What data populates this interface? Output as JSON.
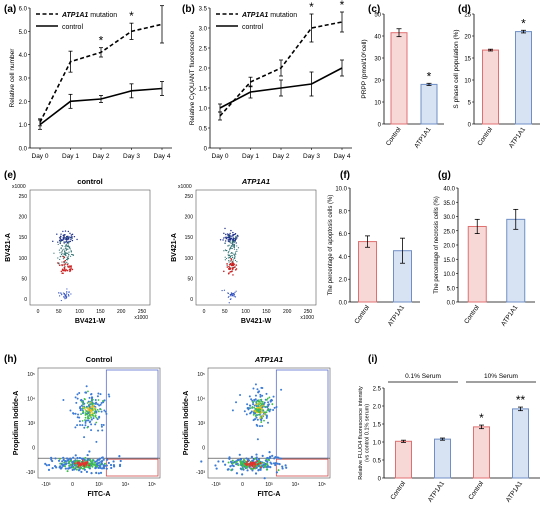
{
  "panels": {
    "a": "(a)",
    "b": "(b)",
    "c": "(c)",
    "d": "(d)",
    "e": "(e)",
    "f": "(f)",
    "g": "(g)",
    "h": "(h)",
    "i": "(i)"
  },
  "colors": {
    "control_fill": "#f8d7d7",
    "control_edge": "#e07070",
    "mut_fill": "#d7e2f2",
    "mut_edge": "#6f8fc6",
    "gate_blue": "#5a6fd0",
    "gate_red": "#d04a4a"
  },
  "chart_data": [
    {
      "id": "a",
      "type": "line",
      "ylabel": "Relative cell number",
      "categories": [
        "Day 0",
        "Day 1",
        "Day 2",
        "Day 3",
        "Day 4"
      ],
      "ylim": [
        0,
        6.0
      ],
      "yticks": [
        "0.0",
        "1.0",
        "2.0",
        "3.0",
        "4.0",
        "5.0",
        "6.0"
      ],
      "series": [
        {
          "name": "ATP1A1 mutation",
          "style": "dashed",
          "values": [
            1.1,
            3.7,
            4.1,
            5.0,
            5.3
          ],
          "errors": [
            0.15,
            0.45,
            0.2,
            0.35,
            0.8
          ]
        },
        {
          "name": "control",
          "style": "solid",
          "values": [
            1.0,
            2.0,
            2.1,
            2.45,
            2.55
          ],
          "errors": [
            0.2,
            0.3,
            0.15,
            0.3,
            0.3
          ]
        }
      ],
      "annotations": [
        "*",
        "*",
        "*"
      ],
      "annotation_positions": [
        2,
        3,
        4
      ]
    },
    {
      "id": "b",
      "type": "line",
      "ylabel": "Relative CyQUANT fluorescence",
      "categories": [
        "Day 0",
        "Day 1",
        "Day 2",
        "Day 3",
        "Day 4"
      ],
      "ylim": [
        0,
        3.5
      ],
      "yticks": [
        "0",
        "0.5",
        "1.0",
        "1.5",
        "2.0",
        "2.5",
        "3.0",
        "3.5"
      ],
      "series": [
        {
          "name": "ATP1A1 mutation",
          "style": "dashed",
          "values": [
            0.8,
            1.65,
            2.0,
            3.0,
            3.15
          ],
          "errors": [
            0.1,
            0.12,
            0.2,
            0.35,
            0.25
          ]
        },
        {
          "name": "control",
          "style": "solid",
          "values": [
            1.0,
            1.4,
            1.5,
            1.6,
            2.0
          ],
          "errors": [
            0.1,
            0.15,
            0.2,
            0.3,
            0.2
          ]
        }
      ],
      "annotations": [
        "*",
        "*"
      ],
      "annotation_positions": [
        3,
        4
      ]
    },
    {
      "id": "c",
      "type": "bar",
      "ylabel": "PRPP (pmol/10⁶cell)",
      "categories": [
        "Control",
        "ATP1A1"
      ],
      "ylim": [
        0,
        50
      ],
      "yticks": [
        "0",
        "10",
        "20",
        "30",
        "40",
        "50"
      ],
      "values": [
        41.5,
        18.0
      ],
      "errors": [
        1.8,
        0.5
      ],
      "annotations": [
        "",
        "*"
      ]
    },
    {
      "id": "d",
      "type": "bar",
      "ylabel": "S phase cell population (%)",
      "categories": [
        "Control",
        "ATP1A1"
      ],
      "ylim": [
        0,
        25
      ],
      "yticks": [
        "0",
        "5",
        "10",
        "15",
        "20",
        "25"
      ],
      "values": [
        16.8,
        21.0
      ],
      "errors": [
        0.2,
        0.3
      ],
      "annotations": [
        "",
        "*"
      ]
    },
    {
      "id": "f",
      "type": "bar",
      "ylabel": "The percentage of apoptosis cells (%)",
      "categories": [
        "Control",
        "ATP1A1"
      ],
      "ylim": [
        0,
        10.0
      ],
      "yticks": [
        "0.0",
        "2.0",
        "4.0",
        "6.0",
        "8.0",
        "10.0"
      ],
      "values": [
        5.3,
        4.5
      ],
      "errors": [
        0.5,
        1.1
      ],
      "annotations": [
        "",
        ""
      ]
    },
    {
      "id": "g",
      "type": "bar",
      "ylabel": "The percentage of necrosis cells (%)",
      "categories": [
        "Control",
        "ATP1A1"
      ],
      "ylim": [
        0,
        40.0
      ],
      "yticks": [
        "0.0",
        "5.0",
        "10.0",
        "15.0",
        "20.0",
        "25.0",
        "30.0",
        "35.0",
        "40.0"
      ],
      "values": [
        26.5,
        29.0
      ],
      "errors": [
        2.5,
        3.5
      ],
      "annotations": [
        "",
        ""
      ]
    },
    {
      "id": "i",
      "type": "bar",
      "ylabel": "Relative FLUO4 fluorescence intensity\n(vs control 0.1% serum)",
      "groups": [
        "0.1% Serum",
        "10% Serum"
      ],
      "categories": [
        "Control",
        "ATP1A1",
        "Control",
        "ATP1A1"
      ],
      "ylim": [
        0,
        2.5
      ],
      "yticks": [
        "0",
        "0.5",
        "1.0",
        "1.5",
        "2.0",
        "2.5"
      ],
      "values": [
        1.02,
        1.08,
        1.42,
        1.92
      ],
      "errors": [
        0.03,
        0.03,
        0.05,
        0.05
      ],
      "annotations": [
        "",
        "",
        "*",
        "**"
      ]
    },
    {
      "id": "e",
      "type": "scatter",
      "plots": [
        {
          "title": "control",
          "title_italic": false
        },
        {
          "title": "ATP1A1",
          "title_italic": true
        }
      ],
      "xlabel": "BV421-W",
      "ylabel": "BV421-A",
      "xticks": [
        "0",
        "50",
        "100",
        "150",
        "200",
        "250"
      ],
      "yticks": [
        "0",
        "50",
        "100",
        "150",
        "200",
        "250"
      ],
      "x_scale": "x1000",
      "y_scale": "x1000"
    },
    {
      "id": "h",
      "type": "scatter",
      "plots": [
        {
          "title": "Control",
          "title_italic": false
        },
        {
          "title": "ATP1A1",
          "title_italic": true
        }
      ],
      "xlabel": "FITC-A",
      "ylabel": "Propidium Iodide-A",
      "xticks": [
        "-10³",
        "0",
        "10³",
        "10⁴",
        "10⁵"
      ],
      "yticks": [
        "-10³",
        "0",
        "10³",
        "10⁴",
        "10⁵"
      ],
      "x_scale": "",
      "y_scale": ""
    }
  ]
}
